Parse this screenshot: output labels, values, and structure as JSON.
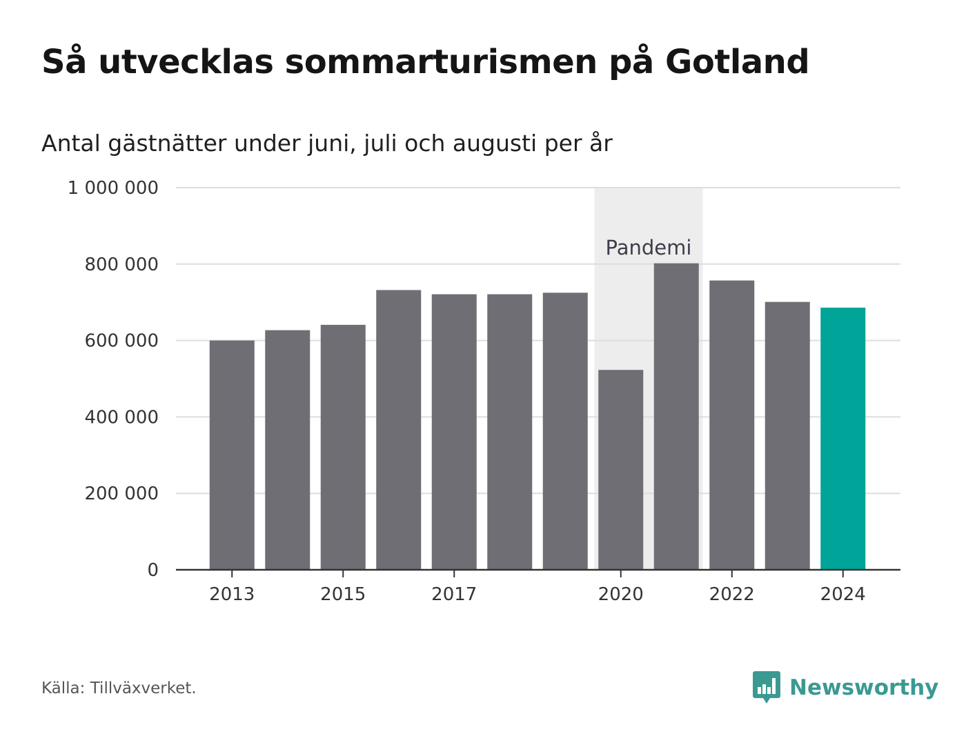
{
  "title": "Så utvecklas sommarturismen på Gotland",
  "subtitle": "Antal gästnätter under juni, juli och augusti per år",
  "source": "Källa: Tillväxverket.",
  "brand": {
    "name": "Newsworthy",
    "icon": "newsworthy-logo-icon",
    "color": "#3a9a92"
  },
  "chart_data": {
    "type": "bar",
    "categories": [
      "2013",
      "2014",
      "2015",
      "2016",
      "2017",
      "2018",
      "2019",
      "2020",
      "2021",
      "2022",
      "2023",
      "2024"
    ],
    "values": [
      600000,
      627000,
      641000,
      732000,
      721000,
      721000,
      725000,
      523000,
      802000,
      757000,
      701000,
      686000
    ],
    "highlight_category": "2024",
    "colors": {
      "bar": "#6f6e75",
      "highlight": "#00a498",
      "band": "#ededed",
      "grid": "#dddddd",
      "axis": "#333333"
    },
    "ylim": [
      0,
      1000000
    ],
    "yticks": [
      0,
      200000,
      400000,
      600000,
      800000,
      1000000
    ],
    "ytick_labels": [
      "0",
      "200 000",
      "400 000",
      "600 000",
      "800 000",
      "1 000 000"
    ],
    "xticks": [
      "2013",
      "2015",
      "2017",
      "2020",
      "2022",
      "2024"
    ],
    "xlabel": "",
    "ylabel": "",
    "grid": true,
    "legend": "none",
    "annotation": {
      "label": "Pandemi",
      "from": "2020",
      "to": "2021"
    }
  }
}
